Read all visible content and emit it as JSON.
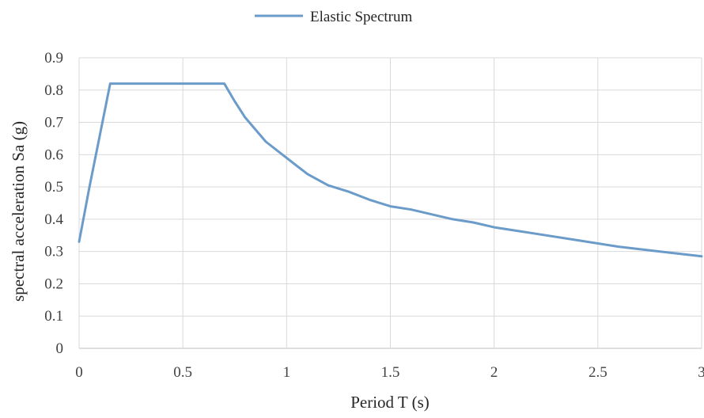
{
  "chart_data": {
    "type": "line",
    "title": "",
    "xlabel": "Period T (s)",
    "ylabel": "spectral acceleration Sa (g)",
    "xlim": [
      0,
      3
    ],
    "ylim": [
      0,
      0.9
    ],
    "x_ticks": [
      "0",
      "0.5",
      "1",
      "1.5",
      "2",
      "2.5",
      "3"
    ],
    "y_ticks": [
      "0",
      "0.1",
      "0.2",
      "0.3",
      "0.4",
      "0.5",
      "0.6",
      "0.7",
      "0.8",
      "0.9"
    ],
    "grid": true,
    "legend_position": "top",
    "series": [
      {
        "name": "Elastic Spectrum",
        "color": "#6b9bc9",
        "x": [
          0,
          0.05,
          0.1,
          0.15,
          0.2,
          0.3,
          0.4,
          0.5,
          0.6,
          0.7,
          0.75,
          0.8,
          0.9,
          1.0,
          1.1,
          1.2,
          1.3,
          1.4,
          1.5,
          1.6,
          1.7,
          1.8,
          1.9,
          2.0,
          2.2,
          2.4,
          2.6,
          2.8,
          3.0
        ],
        "y": [
          0.33,
          0.5,
          0.66,
          0.82,
          0.82,
          0.82,
          0.82,
          0.82,
          0.82,
          0.82,
          0.765,
          0.715,
          0.64,
          0.59,
          0.54,
          0.505,
          0.485,
          0.46,
          0.44,
          0.43,
          0.415,
          0.4,
          0.39,
          0.375,
          0.355,
          0.335,
          0.315,
          0.3,
          0.285
        ]
      }
    ]
  }
}
